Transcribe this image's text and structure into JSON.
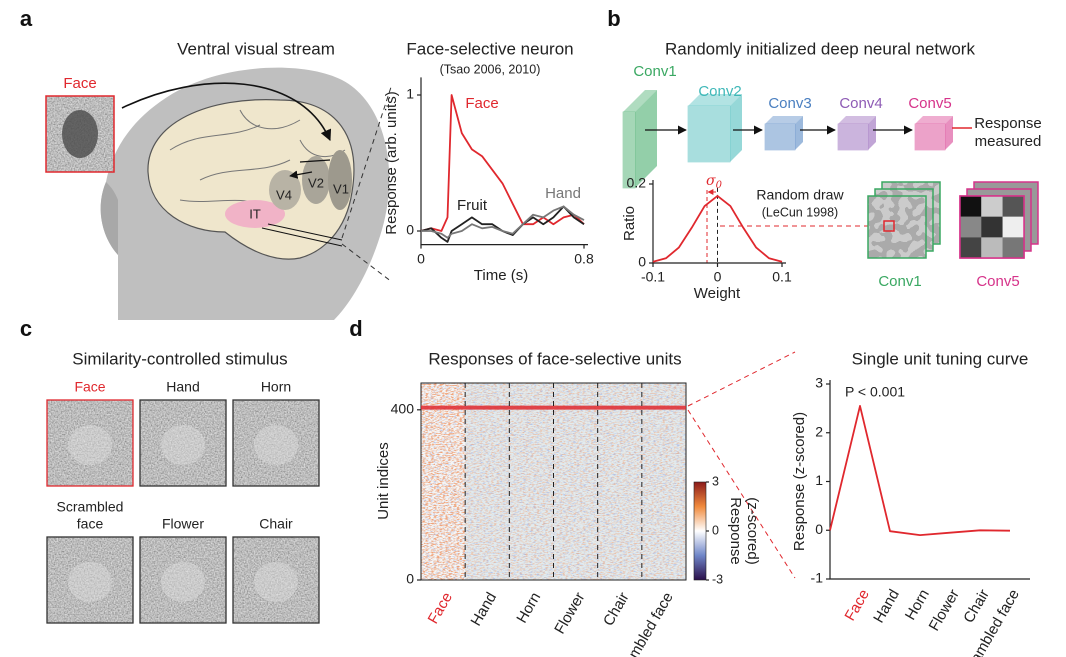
{
  "panels": {
    "a": {
      "letter": "a",
      "title": "Ventral visual stream",
      "stimulus": "Face",
      "areas": [
        "IT",
        "V4",
        "V2",
        "V1"
      ]
    },
    "b": {
      "letter": "b",
      "title": "Randomly initialized deep neural network",
      "layers": [
        "Conv1",
        "Conv2",
        "Conv3",
        "Conv4",
        "Conv5"
      ],
      "layer_colors": [
        "#3aa862",
        "#3fb8b8",
        "#4a7fc0",
        "#8e5bb5",
        "#d6338a"
      ],
      "output": [
        "Response",
        "measured"
      ],
      "sigma": "σ",
      "sigma_sub": "0",
      "draw": "Random draw",
      "draw_citation": "(LeCun 1998)",
      "filters": [
        "Conv1",
        "Conv5"
      ]
    },
    "c": {
      "letter": "c",
      "title": "Similarity-controlled stimulus",
      "stimuli": [
        [
          "Face"
        ],
        [
          "Hand"
        ],
        [
          "Horn"
        ],
        [
          "Scrambled",
          "face"
        ],
        [
          "Flower"
        ],
        [
          "Chair"
        ]
      ]
    },
    "d": {
      "letter": "d",
      "heatmap": {
        "title": "Responses of face-selective units",
        "ylabel": "Unit indices",
        "ylim": [
          0,
          463
        ],
        "yticks": [
          400,
          0
        ],
        "highlight_unit": 405,
        "categories": [
          "Face",
          "Hand",
          "Horn",
          "Flower",
          "Chair",
          "Scrambled face"
        ],
        "colorbar": {
          "lim": [
            -3,
            3
          ],
          "ticks": [
            3,
            0,
            -3
          ],
          "label": [
            "Response",
            "(z-scored)"
          ]
        }
      }
    }
  },
  "chart_data": [
    {
      "type": "line",
      "title": "Face-selective neuron",
      "subtitle": "(Tsao 2006, 2010)",
      "ylabel": "Response (arb. units)",
      "xlabel": "Time (s)",
      "x": [
        0,
        0.05,
        0.1,
        0.13,
        0.15,
        0.2,
        0.25,
        0.3,
        0.35,
        0.4,
        0.45,
        0.5,
        0.55,
        0.6,
        0.65,
        0.7,
        0.75,
        0.8
      ],
      "xlim": [
        0,
        0.8
      ],
      "xticks": [
        0,
        0.8
      ],
      "ylim": [
        -0.1,
        1.1
      ],
      "yticks": [
        0,
        1
      ],
      "series": [
        {
          "name": "Face",
          "color": "#e0282e",
          "values": [
            0,
            0.02,
            0,
            0.1,
            1.0,
            0.72,
            0.6,
            0.55,
            0.45,
            0.35,
            0.2,
            0.05,
            0.05,
            0.1,
            0.05,
            0.1,
            0.12,
            0.05
          ]
        },
        {
          "name": "Fruit",
          "color": "#222222",
          "values": [
            0,
            0.02,
            -0.05,
            -0.08,
            0,
            0.05,
            0.1,
            0.05,
            0.05,
            0,
            -0.03,
            0.05,
            0.1,
            0.05,
            0.1,
            0.18,
            0.1,
            0.05
          ]
        },
        {
          "name": "Hand",
          "color": "#777777",
          "values": [
            0,
            0,
            -0.02,
            -0.05,
            -0.02,
            0,
            0.05,
            0.02,
            0.03,
            0,
            -0.02,
            0.05,
            0.12,
            0.1,
            0.15,
            0.18,
            0.12,
            0.08
          ]
        }
      ]
    },
    {
      "type": "line",
      "ylabel": "Ratio",
      "xlabel": "Weight",
      "x": [
        -0.1,
        -0.08,
        -0.06,
        -0.04,
        -0.02,
        0,
        0.02,
        0.04,
        0.06,
        0.08,
        0.1
      ],
      "xlim": [
        -0.1,
        0.1
      ],
      "xticks": [
        -0.1,
        0,
        0.1
      ],
      "ylim": [
        0,
        0.2
      ],
      "yticks": [
        0,
        0.2
      ],
      "series": [
        {
          "color": "#e0282e",
          "values": [
            0.003,
            0.012,
            0.039,
            0.089,
            0.144,
            0.17,
            0.144,
            0.089,
            0.039,
            0.012,
            0.003
          ]
        }
      ]
    },
    {
      "type": "line",
      "title": "Single unit tuning curve",
      "ylabel": "Response (z-scored)",
      "annotation": "P < 0.001",
      "categories": [
        null,
        "Face",
        "Hand",
        "Horn",
        "Flower",
        "Chair",
        "Scrambled face"
      ],
      "values": [
        0,
        2.55,
        -0.02,
        -0.1,
        -0.05,
        0,
        -0.01
      ],
      "color": "#e0282e",
      "ylim": [
        -1,
        3
      ],
      "yticks": [
        3,
        2,
        1,
        0,
        -1
      ]
    }
  ]
}
